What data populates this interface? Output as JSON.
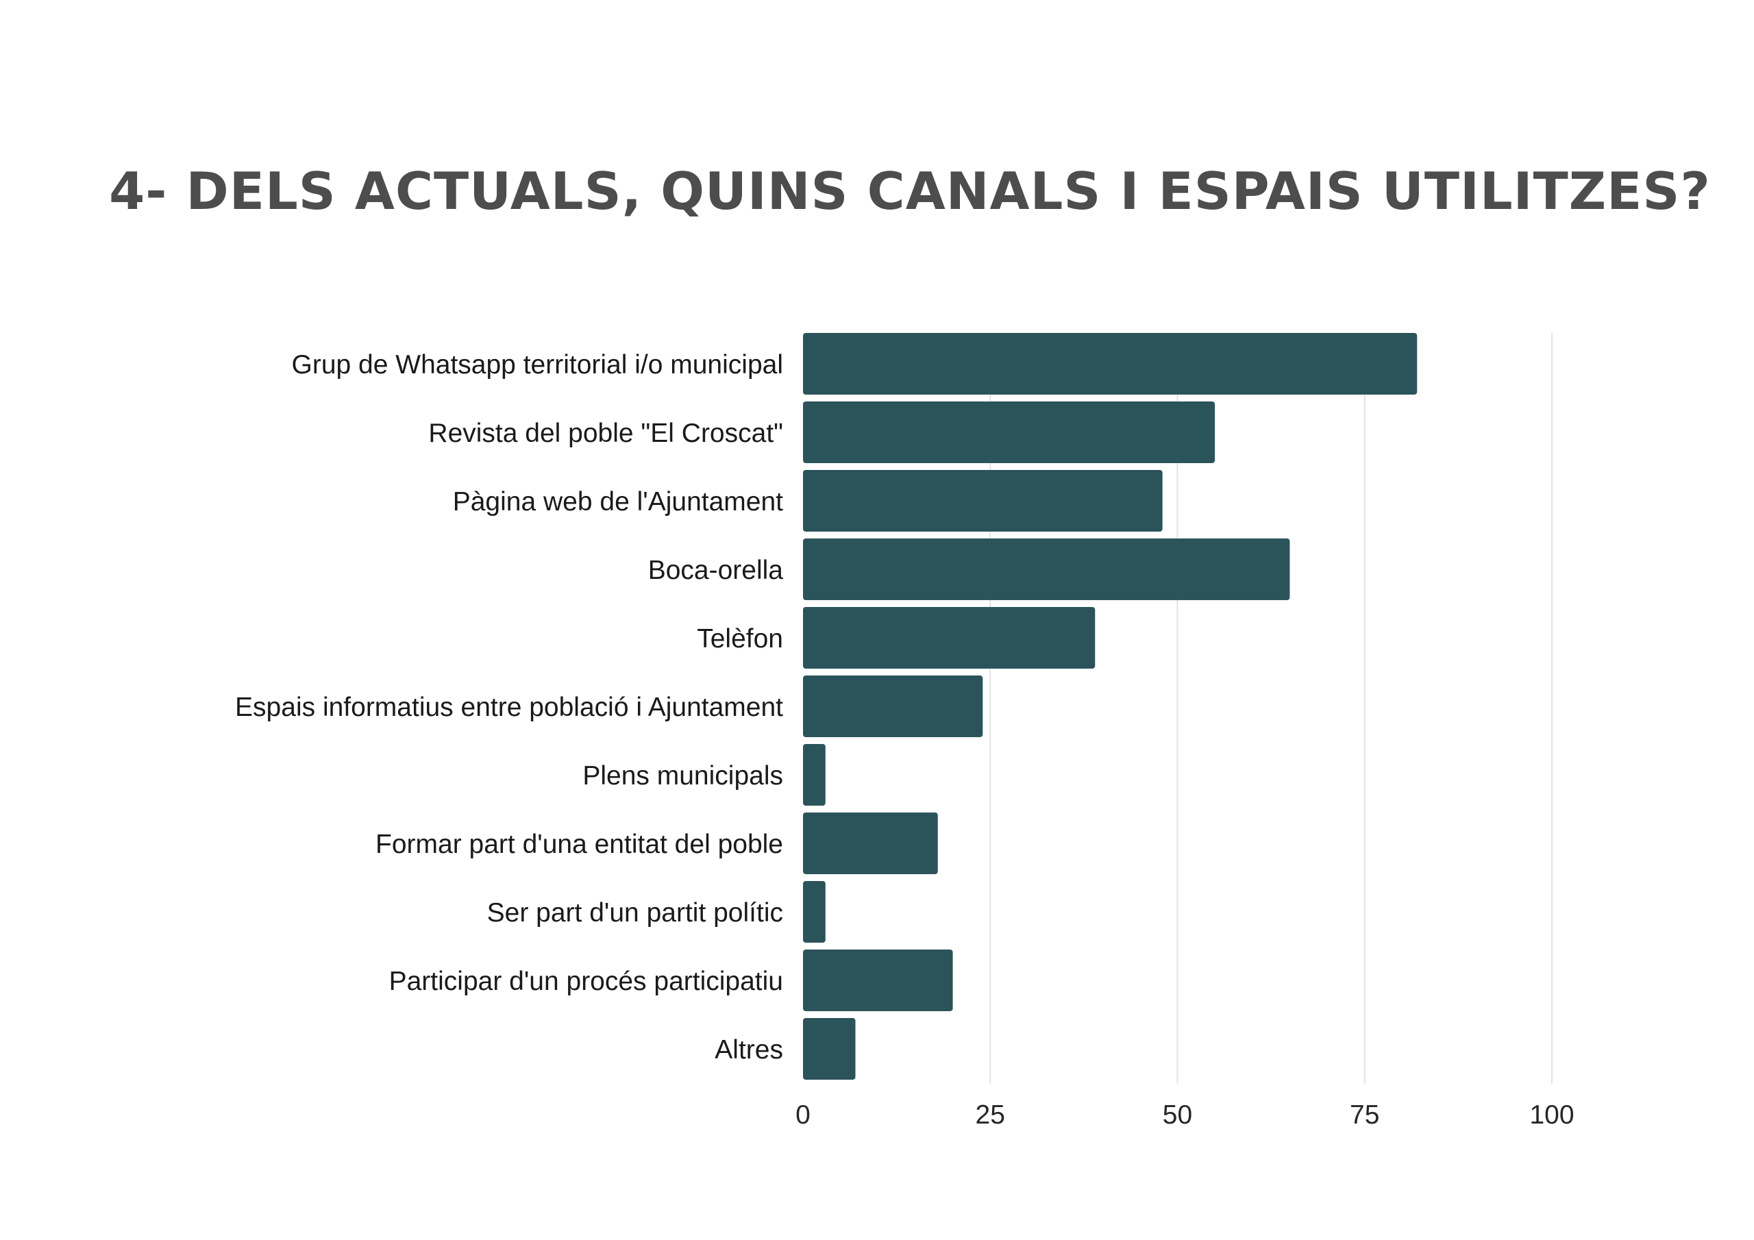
{
  "colors": {
    "bar": "#2b545a",
    "grid": "#e3e3e3",
    "title": "#4d4d4d",
    "text": "#1a1a1a"
  },
  "chart_data": {
    "type": "bar",
    "orientation": "horizontal",
    "title": "4- DELS ACTUALS, QUINS CANALS I ESPAIS UTILITZES?",
    "xlabel": "",
    "ylabel": "",
    "categories": [
      "Grup de Whatsapp territorial i/o municipal",
      "Revista del poble \"El Croscat\"",
      "Pàgina web de l'Ajuntament",
      "Boca-orella",
      "Telèfon",
      "Espais informatius entre població i Ajuntament",
      "Plens municipals",
      "Formar part d'una entitat del poble",
      "Ser part d'un partit polític",
      "Participar d'un procés participatiu",
      "Altres"
    ],
    "values": [
      82,
      55,
      48,
      65,
      39,
      24,
      3,
      18,
      3,
      20,
      7
    ],
    "xlim": [
      0,
      100
    ],
    "xticks": [
      0,
      25,
      50,
      75,
      100
    ],
    "grid": true,
    "legend": "none"
  }
}
